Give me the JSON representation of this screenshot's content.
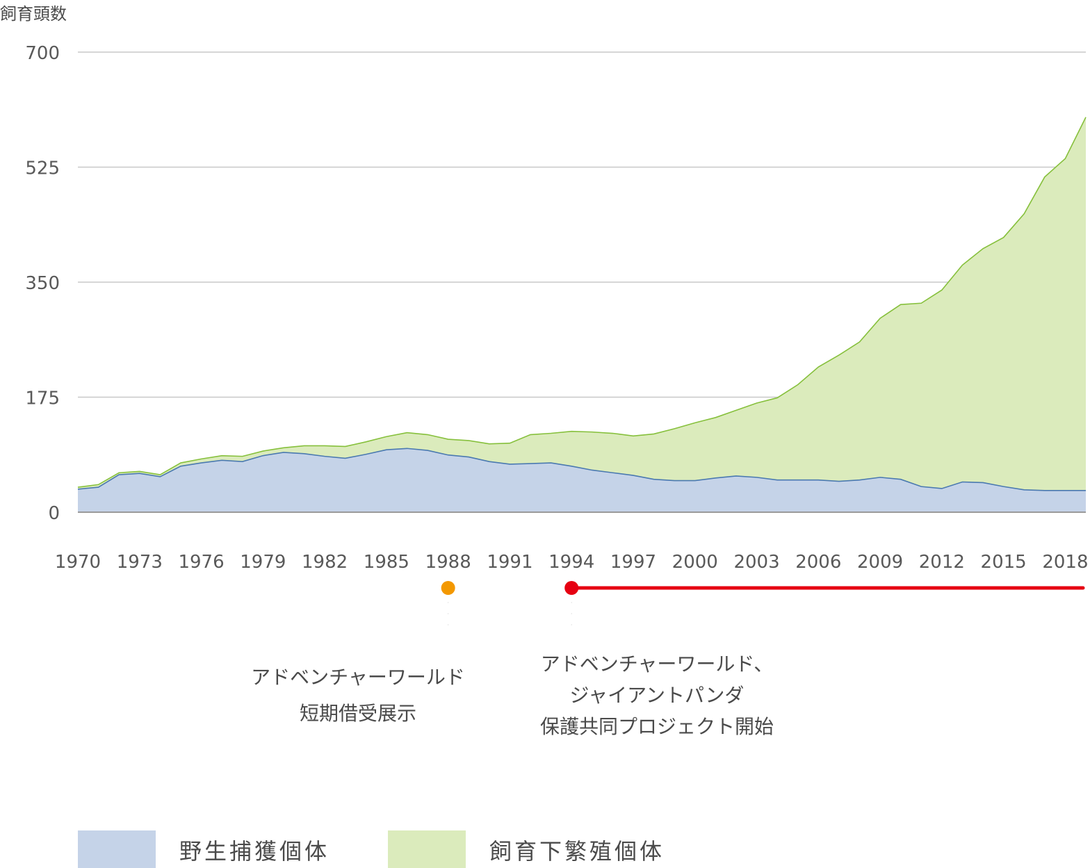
{
  "chart_data": {
    "type": "area",
    "stacked": true,
    "ylabel": "飼育頭数",
    "ylim": [
      0,
      700
    ],
    "yticks": [
      0,
      175,
      350,
      525,
      700
    ],
    "xticks": [
      1970,
      1973,
      1976,
      1979,
      1982,
      1985,
      1988,
      1991,
      1994,
      1997,
      2000,
      2003,
      2006,
      2009,
      2012,
      2015,
      2018
    ],
    "grid": true,
    "x": [
      1970,
      1971,
      1972,
      1973,
      1974,
      1975,
      1976,
      1977,
      1978,
      1979,
      1980,
      1981,
      1982,
      1983,
      1984,
      1985,
      1986,
      1987,
      1988,
      1989,
      1990,
      1991,
      1992,
      1993,
      1994,
      1995,
      1996,
      1997,
      1998,
      1999,
      2000,
      2001,
      2002,
      2003,
      2004,
      2005,
      2006,
      2007,
      2008,
      2009,
      2010,
      2011,
      2012,
      2013,
      2014,
      2015,
      2016,
      2017,
      2018,
      2019
    ],
    "series": [
      {
        "name": "野生捕獲個体",
        "color": "#c5d3e8",
        "line_color": "#4a79b0",
        "values": [
          35,
          38,
          57,
          59,
          54,
          70,
          75,
          79,
          77,
          86,
          91,
          89,
          85,
          82,
          88,
          95,
          97,
          94,
          87,
          84,
          77,
          73,
          74,
          75,
          70,
          64,
          60,
          56,
          50,
          48,
          48,
          52,
          55,
          53,
          49,
          49,
          49,
          47,
          49,
          53,
          50,
          39,
          36,
          46,
          45,
          39,
          34,
          33,
          33,
          33
        ]
      },
      {
        "name": "飼育下繁殖個体",
        "color": "#dbebbc",
        "line_color": "#86c03c",
        "values": [
          3,
          4,
          3,
          3,
          3,
          5,
          6,
          7,
          8,
          7,
          7,
          12,
          16,
          18,
          19,
          20,
          24,
          24,
          24,
          25,
          27,
          32,
          44,
          45,
          53,
          58,
          60,
          60,
          69,
          79,
          88,
          92,
          100,
          113,
          125,
          145,
          172,
          192,
          210,
          242,
          266,
          279,
          302,
          330,
          356,
          379,
          420,
          477,
          505,
          568
        ]
      }
    ],
    "events": [
      {
        "year": 1988,
        "kind": "point",
        "color": "#f39800",
        "lines": [
          "アドベンチャーワールド",
          "短期借受展示"
        ]
      },
      {
        "year": 1994,
        "end_year": 2019,
        "kind": "range",
        "color": "#e60012",
        "lines": [
          "アドベンチャーワールド、",
          "ジャイアントパンダ",
          "保護共同プロジェクト開始"
        ]
      }
    ],
    "legend": "bottom"
  }
}
